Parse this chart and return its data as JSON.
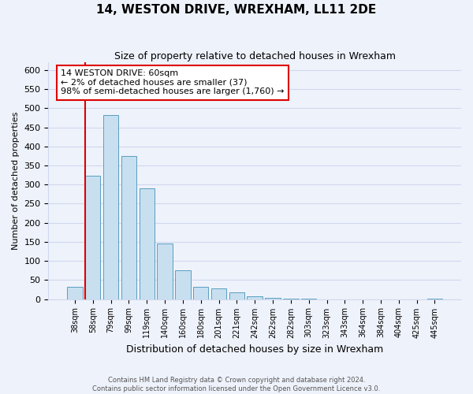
{
  "title": "14, WESTON DRIVE, WREXHAM, LL11 2DE",
  "subtitle": "Size of property relative to detached houses in Wrexham",
  "xlabel": "Distribution of detached houses by size in Wrexham",
  "ylabel": "Number of detached properties",
  "bar_labels": [
    "38sqm",
    "58sqm",
    "79sqm",
    "99sqm",
    "119sqm",
    "140sqm",
    "160sqm",
    "180sqm",
    "201sqm",
    "221sqm",
    "242sqm",
    "262sqm",
    "282sqm",
    "303sqm",
    "323sqm",
    "343sqm",
    "364sqm",
    "384sqm",
    "404sqm",
    "425sqm",
    "445sqm"
  ],
  "bar_values": [
    32,
    323,
    482,
    375,
    290,
    145,
    75,
    32,
    29,
    17,
    8,
    3,
    1,
    1,
    0,
    0,
    0,
    0,
    0,
    0,
    2
  ],
  "bar_color": "#c8dff0",
  "bar_edge_color": "#5a9fc0",
  "highlight_color": "#dd0000",
  "ylim": [
    0,
    620
  ],
  "yticks": [
    0,
    50,
    100,
    150,
    200,
    250,
    300,
    350,
    400,
    450,
    500,
    550,
    600
  ],
  "annotation_title": "14 WESTON DRIVE: 60sqm",
  "annotation_line1": "← 2% of detached houses are smaller (37)",
  "annotation_line2": "98% of semi-detached houses are larger (1,760) →",
  "annotation_box_color": "#ffffff",
  "annotation_box_edge": "#dd0000",
  "footer1": "Contains HM Land Registry data © Crown copyright and database right 2024.",
  "footer2": "Contains public sector information licensed under the Open Government Licence v3.0.",
  "bg_color": "#eef2fb",
  "grid_color": "#d0d8ee",
  "title_fontsize": 11,
  "subtitle_fontsize": 9
}
